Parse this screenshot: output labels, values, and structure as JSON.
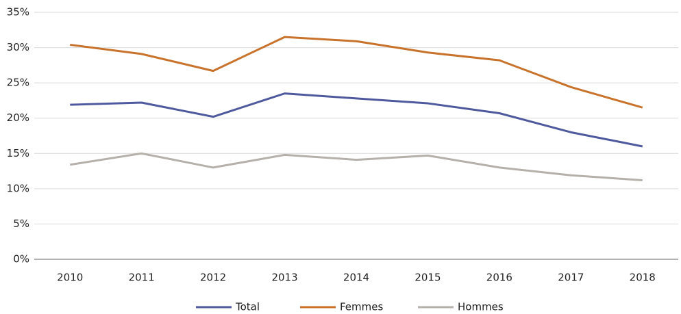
{
  "chart_data": {
    "type": "line",
    "categories": [
      "2010",
      "2011",
      "2012",
      "2013",
      "2014",
      "2015",
      "2016",
      "2017",
      "2018"
    ],
    "series": [
      {
        "name": "Total",
        "color": "#4f5a9e",
        "values": [
          21.9,
          22.2,
          20.2,
          23.5,
          22.8,
          22.1,
          20.7,
          18.0,
          16.0
        ]
      },
      {
        "name": "Femmes",
        "color": "#c8722c",
        "values": [
          30.4,
          29.1,
          26.7,
          31.5,
          30.9,
          29.3,
          28.2,
          24.4,
          21.5
        ]
      },
      {
        "name": "Hommes",
        "color": "#b5b0aa",
        "values": [
          13.4,
          15.0,
          13.0,
          14.8,
          14.1,
          14.7,
          13.0,
          11.9,
          11.2
        ]
      }
    ],
    "ylim": [
      0,
      35
    ],
    "yticks": [
      {
        "value": 0,
        "label": "0%"
      },
      {
        "value": 5,
        "label": "5%"
      },
      {
        "value": 10,
        "label": "10%"
      },
      {
        "value": 15,
        "label": "15%"
      },
      {
        "value": 20,
        "label": "20%"
      },
      {
        "value": 25,
        "label": "25%"
      },
      {
        "value": 30,
        "label": "30%"
      },
      {
        "value": 35,
        "label": "35%"
      }
    ],
    "grid": true,
    "legend": "bottom"
  }
}
